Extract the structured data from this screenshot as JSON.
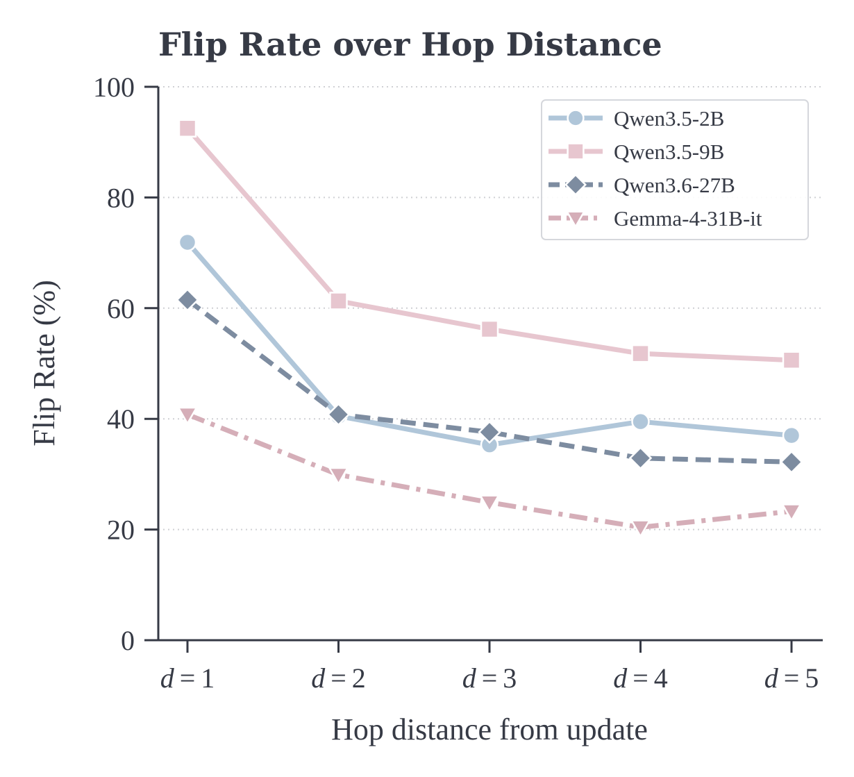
{
  "chart_data": {
    "type": "line",
    "title": "Flip Rate over Hop Distance",
    "xlabel": "Hop distance from update",
    "ylabel": "Flip Rate (%)",
    "categories": [
      "d = 1",
      "d = 2",
      "d = 3",
      "d = 4",
      "d = 5"
    ],
    "category_var": "d",
    "category_nums": [
      "1",
      "2",
      "3",
      "4",
      "5"
    ],
    "ylim": [
      0,
      100
    ],
    "yticks": [
      "0",
      "20",
      "40",
      "60",
      "80",
      "100"
    ],
    "grid": "horizontal dotted",
    "legend_position": "top-right",
    "series": [
      {
        "name": "Qwen3.5-2B",
        "values": [
          71.9,
          40.5,
          35.3,
          39.5,
          37.0
        ],
        "color": "#b0c6d9",
        "marker": "circle",
        "dash": "solid"
      },
      {
        "name": "Qwen3.5-9B",
        "values": [
          92.5,
          61.3,
          56.2,
          51.8,
          50.6
        ],
        "color": "#e7c6cf",
        "marker": "square",
        "dash": "solid"
      },
      {
        "name": "Qwen3.6-27B",
        "values": [
          61.5,
          40.8,
          37.6,
          32.9,
          32.2
        ],
        "color": "#7d8ca0",
        "marker": "diamond",
        "dash": "dashed"
      },
      {
        "name": "Gemma-4-31B-it",
        "values": [
          40.8,
          29.9,
          24.9,
          20.4,
          23.3
        ],
        "color": "#d5aeb8",
        "marker": "triangle-down",
        "dash": "dashdot"
      }
    ]
  }
}
